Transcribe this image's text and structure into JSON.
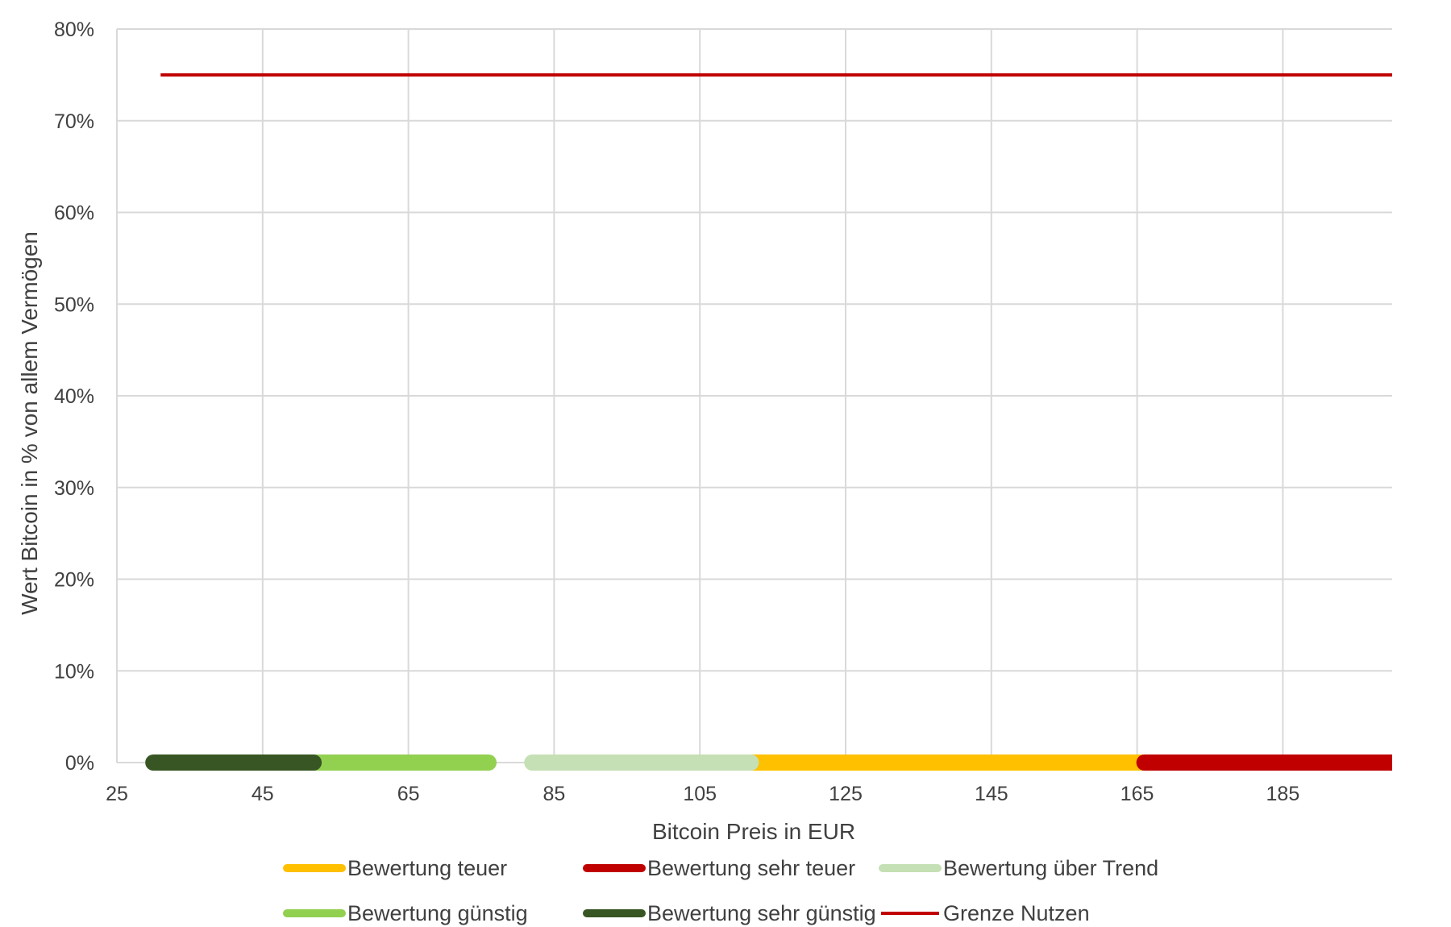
{
  "chart_data": {
    "type": "line",
    "title": "",
    "xlabel": "Bitcoin Preis in EUR",
    "ylabel": "Wert Bitcoin in % von allem Vermögen",
    "xlim": [
      25,
      200
    ],
    "ylim": [
      0,
      0.8
    ],
    "x_ticks": [
      25,
      45,
      65,
      85,
      105,
      125,
      145,
      165,
      185
    ],
    "x_tick_labels": [
      "25",
      "45",
      "65",
      "85",
      "105",
      "125",
      "145",
      "165",
      "185"
    ],
    "y_ticks": [
      0,
      0.1,
      0.2,
      0.3,
      0.4,
      0.5,
      0.6,
      0.7,
      0.8
    ],
    "y_tick_labels": [
      "0%",
      "10%",
      "20%",
      "30%",
      "40%",
      "50%",
      "60%",
      "70%",
      "80%"
    ],
    "grid": true,
    "legend_position": "bottom",
    "series": [
      {
        "name": "Bewertung teuer",
        "color": "#FFC000",
        "style": "band",
        "x": [
          112,
          166
        ],
        "y": [
          0,
          0
        ]
      },
      {
        "name": "Bewertung sehr teuer",
        "color": "#C00000",
        "style": "band",
        "x": [
          166,
          200
        ],
        "y": [
          0,
          0
        ]
      },
      {
        "name": "Bewertung über Trend",
        "color": "#C5E0B4",
        "style": "band",
        "x": [
          82,
          112
        ],
        "y": [
          0,
          0
        ]
      },
      {
        "name": "Bewertung günstig",
        "color": "#92D050",
        "style": "band",
        "x": [
          52,
          76
        ],
        "y": [
          0,
          0
        ]
      },
      {
        "name": "Bewertung sehr günstig",
        "color": "#375623",
        "style": "band",
        "x": [
          30,
          52
        ],
        "y": [
          0,
          0
        ]
      },
      {
        "name": "Grenze Nutzen",
        "color": "#C00000",
        "style": "line",
        "x": [
          31,
          200
        ],
        "y": [
          0.75,
          0.75
        ]
      }
    ]
  }
}
